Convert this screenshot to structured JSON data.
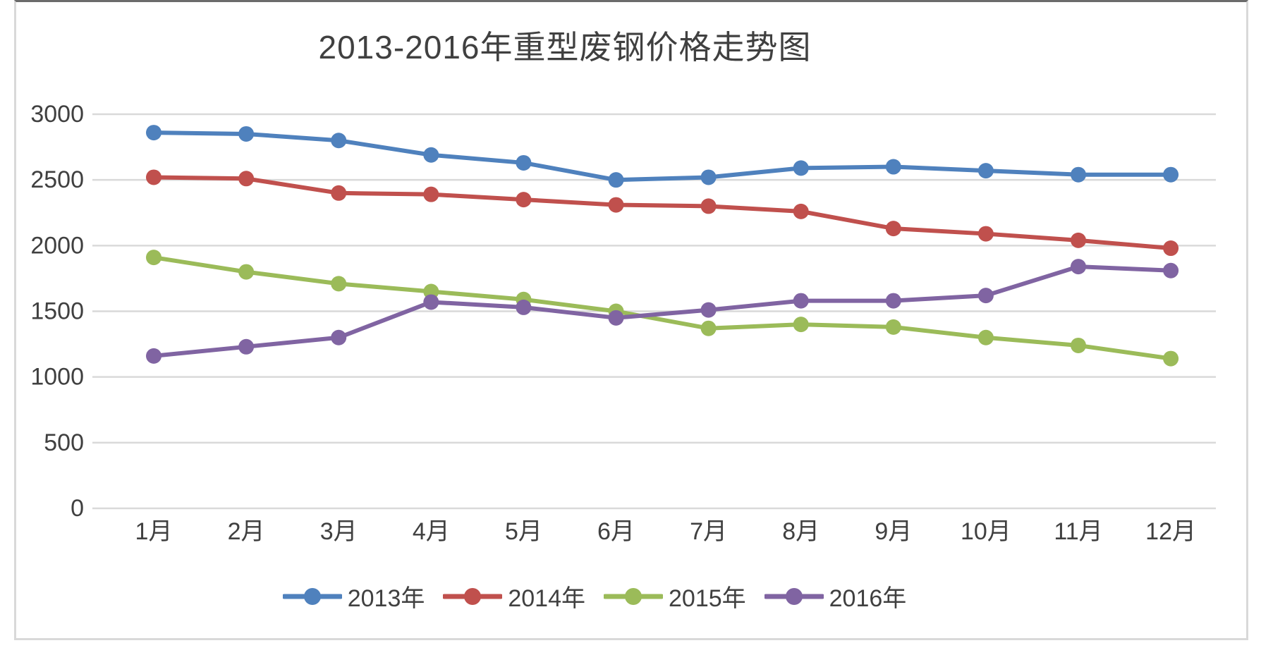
{
  "page": {
    "background_color": "#ffffff",
    "panel_border_color": "#d9d9d9",
    "panel_top_edge_color": "#6b6b6b"
  },
  "chart_data": {
    "type": "line",
    "title": "2013-2016年重型废钢价格走势图",
    "title_color": "#404040",
    "axis_text_color": "#404040",
    "grid_color": "#d9d9d9",
    "grid": true,
    "legend_position": "bottom",
    "xlabel": "",
    "ylabel": "",
    "ylim": [
      0,
      3000
    ],
    "yticks": [
      0,
      500,
      1000,
      1500,
      2000,
      2500,
      3000
    ],
    "categories": [
      "1月",
      "2月",
      "3月",
      "4月",
      "5月",
      "6月",
      "7月",
      "8月",
      "9月",
      "10月",
      "11月",
      "12月"
    ],
    "series": [
      {
        "name": "2013年",
        "color": "#4F81BD",
        "values": [
          2860,
          2850,
          2800,
          2690,
          2630,
          2500,
          2520,
          2590,
          2600,
          2570,
          2540,
          2540
        ]
      },
      {
        "name": "2014年",
        "color": "#C0504D",
        "values": [
          2520,
          2510,
          2400,
          2390,
          2350,
          2310,
          2300,
          2260,
          2130,
          2090,
          2040,
          1980
        ]
      },
      {
        "name": "2015年",
        "color": "#9BBB59",
        "values": [
          1910,
          1800,
          1710,
          1650,
          1590,
          1500,
          1370,
          1400,
          1380,
          1300,
          1240,
          1140
        ]
      },
      {
        "name": "2016年",
        "color": "#8064A2",
        "values": [
          1160,
          1230,
          1300,
          1570,
          1530,
          1450,
          1510,
          1580,
          1580,
          1620,
          1840,
          1810
        ]
      }
    ]
  }
}
